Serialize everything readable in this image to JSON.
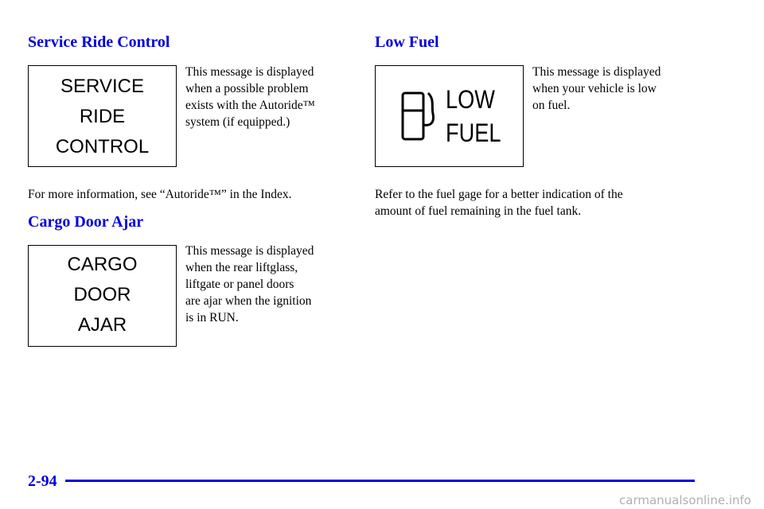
{
  "sections": [
    {
      "title": "Service Ride Control",
      "display": [
        "SERVICE",
        "RIDE",
        "CONTROL"
      ],
      "description": [
        "This message is displayed",
        "when a possible problem",
        "exists with the Autoride™",
        "system (if equipped.)"
      ],
      "note": [
        "For more information, see “Autoride™” in the Index."
      ]
    },
    {
      "title": "Cargo Door Ajar",
      "display": [
        "CARGO",
        "DOOR",
        "AJAR"
      ],
      "description": [
        "This message is displayed",
        "when the rear liftglass,",
        "liftgate or panel doors",
        "are ajar when the ignition",
        "is in RUN."
      ]
    },
    {
      "title": "Low Fuel",
      "display": [
        "LOW",
        "FUEL"
      ],
      "description": [
        "This message is displayed",
        "when your vehicle is low",
        "on fuel."
      ],
      "note": [
        "Refer to the fuel gage for a better indication of the",
        "amount of fuel remaining in the fuel tank."
      ]
    }
  ],
  "footer": {
    "page_number": "2-94",
    "watermark": "carmanualsonline.info"
  }
}
